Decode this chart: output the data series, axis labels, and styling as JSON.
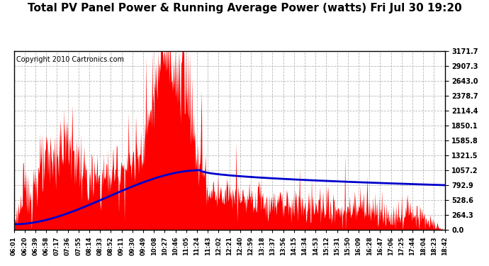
{
  "title": "Total PV Panel Power & Running Average Power (watts) Fri Jul 30 19:20",
  "copyright": "Copyright 2010 Cartronics.com",
  "background_color": "#ffffff",
  "plot_bg_color": "#ffffff",
  "grid_color": "#b0b0b0",
  "y_max": 3171.7,
  "y_min": 0.0,
  "y_ticks": [
    0.0,
    264.3,
    528.6,
    792.9,
    1057.2,
    1321.5,
    1585.8,
    1850.1,
    2114.4,
    2378.7,
    2643.0,
    2907.3,
    3171.7
  ],
  "x_labels": [
    "06:01",
    "06:20",
    "06:39",
    "06:58",
    "07:17",
    "07:36",
    "07:55",
    "08:14",
    "08:33",
    "08:52",
    "09:11",
    "09:30",
    "09:49",
    "10:08",
    "10:27",
    "10:46",
    "11:05",
    "11:24",
    "11:43",
    "12:02",
    "12:21",
    "12:40",
    "12:59",
    "13:18",
    "13:37",
    "13:56",
    "14:15",
    "14:34",
    "14:53",
    "15:12",
    "15:31",
    "15:50",
    "16:09",
    "16:28",
    "16:47",
    "17:06",
    "17:25",
    "17:44",
    "18:04",
    "18:23",
    "18:42"
  ],
  "fill_color": "#ff0000",
  "line_color": "#0000cc",
  "title_fontsize": 11,
  "copyright_fontsize": 7
}
